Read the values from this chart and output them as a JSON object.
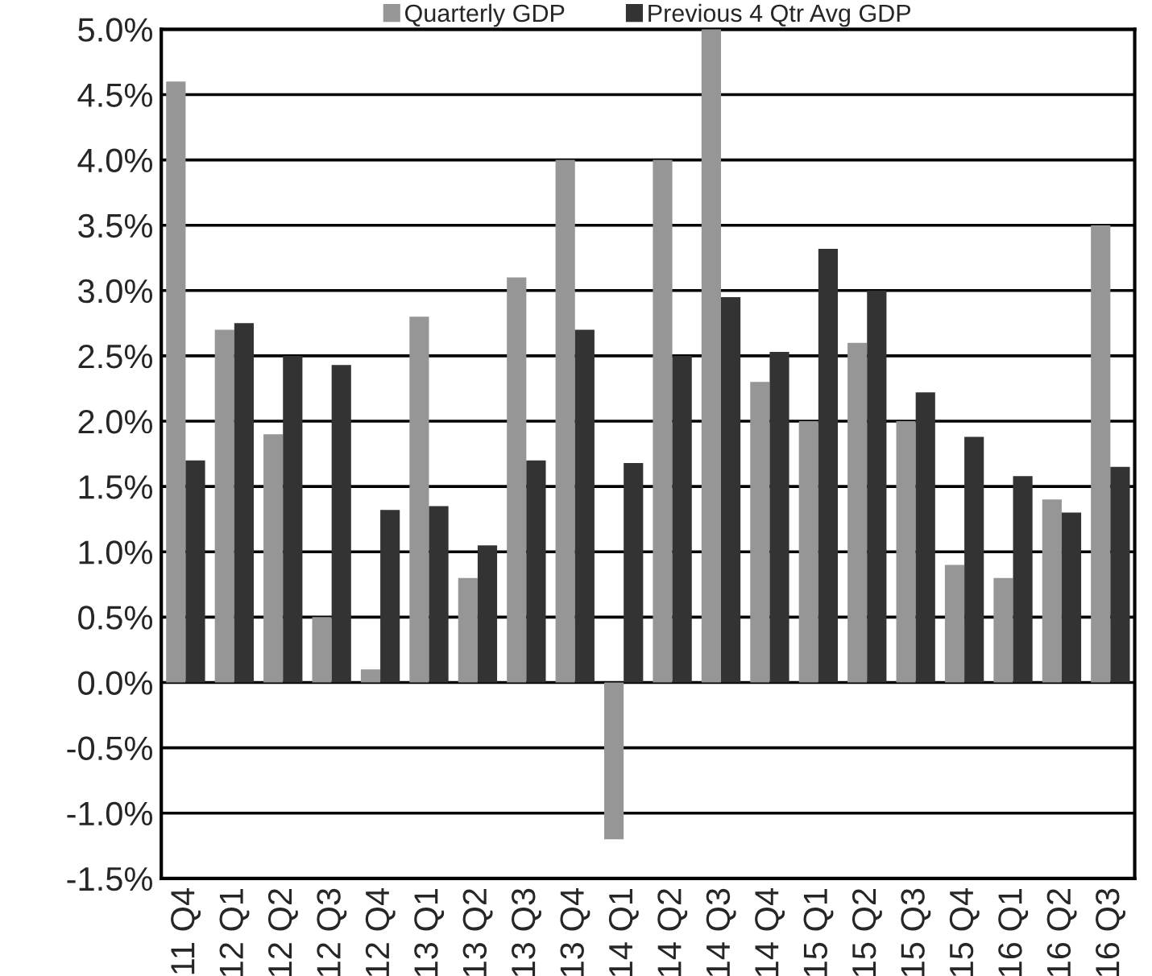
{
  "chart_data": {
    "type": "bar",
    "categories": [
      "11 Q4",
      "12 Q1",
      "12 Q2",
      "12 Q3",
      "12 Q4",
      "13 Q1",
      "13 Q2",
      "13 Q3",
      "13 Q4",
      "14 Q1",
      "14 Q2",
      "14 Q3",
      "14 Q4",
      "15 Q1",
      "15 Q2",
      "15 Q3",
      "15 Q4",
      "16 Q1",
      "16 Q2",
      "16 Q3"
    ],
    "series": [
      {
        "name": "Quarterly GDP",
        "color": "#969696",
        "values": [
          4.6,
          2.7,
          1.9,
          0.5,
          0.1,
          2.8,
          0.8,
          3.1,
          4.0,
          -1.2,
          4.0,
          5.0,
          2.3,
          2.0,
          2.6,
          2.0,
          0.9,
          0.8,
          1.4,
          3.5
        ]
      },
      {
        "name": "Previous 4 Qtr Avg GDP",
        "color": "#333333",
        "values": [
          1.7,
          2.75,
          2.5,
          2.43,
          1.32,
          1.35,
          1.05,
          1.7,
          2.7,
          1.68,
          2.5,
          2.95,
          2.53,
          3.32,
          3.0,
          2.22,
          1.88,
          1.58,
          1.3,
          1.65
        ]
      }
    ],
    "ylim": [
      -1.5,
      5.0
    ],
    "yticks": [
      {
        "value": -1.5,
        "label": "-1.5%"
      },
      {
        "value": -1.0,
        "label": "-1.0%"
      },
      {
        "value": -0.5,
        "label": "-0.5%"
      },
      {
        "value": 0.0,
        "label": "0.0%"
      },
      {
        "value": 0.5,
        "label": "0.5%"
      },
      {
        "value": 1.0,
        "label": "1.0%"
      },
      {
        "value": 1.5,
        "label": "1.5%"
      },
      {
        "value": 2.0,
        "label": "2.0%"
      },
      {
        "value": 2.5,
        "label": "2.5%"
      },
      {
        "value": 3.0,
        "label": "3.0%"
      },
      {
        "value": 3.5,
        "label": "3.5%"
      },
      {
        "value": 4.0,
        "label": "4.0%"
      },
      {
        "value": 4.5,
        "label": "4.5%"
      },
      {
        "value": 5.0,
        "label": "5.0%"
      }
    ],
    "grid": "y",
    "legend": "top"
  }
}
